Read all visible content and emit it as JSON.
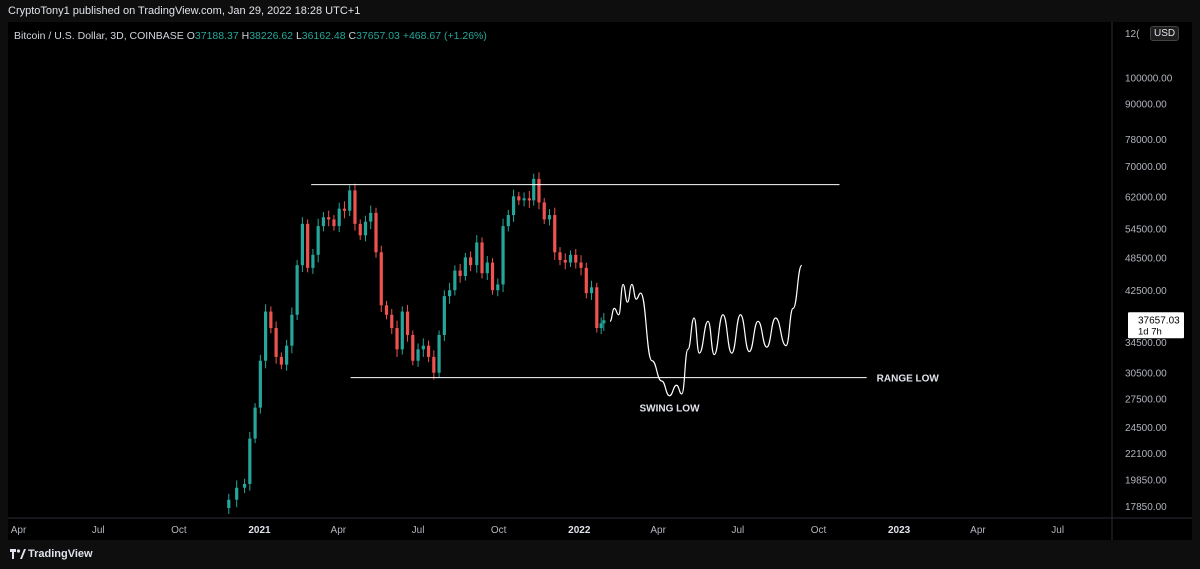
{
  "header": {
    "published": "CryptoTony1 published on TradingView.com, Jan 29, 2022 18:28 UTC+1"
  },
  "legend": {
    "symbol": "Bitcoin / U.S. Dollar, 3D, COINBASE",
    "o_label": "O",
    "o_value": "37188.37",
    "h_label": "H",
    "h_value": "38226.62",
    "l_label": "L",
    "l_value": "36162.48",
    "c_label": "C",
    "c_value": "37657.03",
    "change": "+468.67 (+1.26%)"
  },
  "currency_button": "USD",
  "price_badge": {
    "price": "37657.03",
    "countdown": "1d 7h"
  },
  "footer": {
    "brand": "TradingView"
  },
  "colors": {
    "up": "#26a69a",
    "down": "#ef5350",
    "background": "#000000",
    "drawing": "#ffffff"
  },
  "chart_data": {
    "type": "candlestick",
    "symbol": "Bitcoin / U.S. Dollar",
    "interval": "3D",
    "y_scale": "log",
    "ylim": [
      17000,
      125000
    ],
    "y_ticks": [
      100000,
      90000,
      78000,
      70000,
      62000,
      54500,
      48500,
      42500,
      34500,
      30500,
      27500,
      24500,
      22100,
      19850,
      17850
    ],
    "y_tick_labels": [
      "100000.00",
      "90000.00",
      "78000.00",
      "70000.00",
      "62000.00",
      "54500.00",
      "48500.00",
      "42500.00",
      "34500.00",
      "30500.00",
      "27500.00",
      "24500.00",
      "22100.00",
      "19850.00",
      "17850.00"
    ],
    "y_top_partial_label": "12(",
    "xlim": [
      "2020-03-20",
      "2023-09-01"
    ],
    "x_ticks": [
      {
        "date": "2020-04-01",
        "label": "Apr",
        "bold": false
      },
      {
        "date": "2020-07-01",
        "label": "Jul",
        "bold": false
      },
      {
        "date": "2020-10-01",
        "label": "Oct",
        "bold": false
      },
      {
        "date": "2021-01-01",
        "label": "2021",
        "bold": true
      },
      {
        "date": "2021-04-01",
        "label": "Apr",
        "bold": false
      },
      {
        "date": "2021-07-01",
        "label": "Jul",
        "bold": false
      },
      {
        "date": "2021-10-01",
        "label": "Oct",
        "bold": false
      },
      {
        "date": "2022-01-01",
        "label": "2022",
        "bold": true
      },
      {
        "date": "2022-04-01",
        "label": "Apr",
        "bold": false
      },
      {
        "date": "2022-07-01",
        "label": "Jul",
        "bold": false
      },
      {
        "date": "2022-10-01",
        "label": "Oct",
        "bold": false
      },
      {
        "date": "2023-01-01",
        "label": "2023",
        "bold": true
      },
      {
        "date": "2023-04-01",
        "label": "Apr",
        "bold": false
      },
      {
        "date": "2023-07-01",
        "label": "Jul",
        "bold": false
      }
    ],
    "price_path": [
      [
        "2020-11-18",
        17700
      ],
      [
        "2020-11-27",
        18300
      ],
      [
        "2020-12-06",
        19200
      ],
      [
        "2020-12-15",
        19500
      ],
      [
        "2020-12-21",
        23400
      ],
      [
        "2020-12-27",
        26500
      ],
      [
        "2021-01-02",
        32000
      ],
      [
        "2021-01-08",
        39000
      ],
      [
        "2021-01-14",
        36500
      ],
      [
        "2021-01-20",
        32500
      ],
      [
        "2021-01-26",
        31500
      ],
      [
        "2021-02-01",
        34000
      ],
      [
        "2021-02-07",
        38500
      ],
      [
        "2021-02-13",
        47000
      ],
      [
        "2021-02-19",
        55500
      ],
      [
        "2021-02-25",
        46500
      ],
      [
        "2021-03-03",
        49000
      ],
      [
        "2021-03-09",
        55000
      ],
      [
        "2021-03-15",
        57000
      ],
      [
        "2021-03-21",
        56500
      ],
      [
        "2021-03-27",
        55000
      ],
      [
        "2021-04-02",
        59000
      ],
      [
        "2021-04-08",
        58500
      ],
      [
        "2021-04-14",
        63500
      ],
      [
        "2021-04-20",
        55500
      ],
      [
        "2021-04-26",
        53000
      ],
      [
        "2021-05-02",
        56000
      ],
      [
        "2021-05-08",
        58000
      ],
      [
        "2021-05-14",
        49500
      ],
      [
        "2021-05-20",
        40000
      ],
      [
        "2021-05-26",
        38500
      ],
      [
        "2021-06-01",
        36500
      ],
      [
        "2021-06-07",
        33500
      ],
      [
        "2021-06-13",
        39000
      ],
      [
        "2021-06-19",
        35500
      ],
      [
        "2021-06-25",
        32000
      ],
      [
        "2021-07-01",
        33500
      ],
      [
        "2021-07-07",
        34000
      ],
      [
        "2021-07-13",
        32500
      ],
      [
        "2021-07-19",
        30500
      ],
      [
        "2021-07-25",
        35500
      ],
      [
        "2021-07-31",
        41500
      ],
      [
        "2021-08-06",
        42500
      ],
      [
        "2021-08-12",
        46000
      ],
      [
        "2021-08-18",
        45000
      ],
      [
        "2021-08-24",
        48500
      ],
      [
        "2021-08-30",
        47000
      ],
      [
        "2021-09-06",
        51500
      ],
      [
        "2021-09-12",
        45500
      ],
      [
        "2021-09-18",
        47500
      ],
      [
        "2021-09-24",
        42500
      ],
      [
        "2021-09-30",
        43500
      ],
      [
        "2021-10-06",
        55000
      ],
      [
        "2021-10-12",
        57500
      ],
      [
        "2021-10-18",
        62000
      ],
      [
        "2021-10-24",
        61000
      ],
      [
        "2021-10-30",
        61500
      ],
      [
        "2021-11-05",
        61000
      ],
      [
        "2021-11-10",
        66500
      ],
      [
        "2021-11-16",
        60500
      ],
      [
        "2021-11-22",
        56500
      ],
      [
        "2021-11-28",
        57500
      ],
      [
        "2021-12-04",
        49500
      ],
      [
        "2021-12-10",
        48000
      ],
      [
        "2021-12-16",
        47500
      ],
      [
        "2021-12-22",
        49000
      ],
      [
        "2021-12-28",
        47500
      ],
      [
        "2022-01-03",
        46500
      ],
      [
        "2022-01-09",
        42000
      ],
      [
        "2022-01-15",
        43000
      ],
      [
        "2022-01-21",
        36500
      ],
      [
        "2022-01-26",
        37200
      ],
      [
        "2022-01-29",
        37657
      ]
    ],
    "drawings": [
      {
        "type": "horizontal-line",
        "label": "",
        "price": 65000,
        "from": "2021-03-01",
        "to": "2022-10-25"
      },
      {
        "type": "horizontal-line",
        "label": "RANGE LOW",
        "price": 29900,
        "from": "2021-04-15",
        "to": "2022-11-25"
      },
      {
        "type": "freehand-projection",
        "label": "SWING LOW",
        "path": [
          [
            "2022-02-05",
            37500
          ],
          [
            "2022-02-10",
            39500
          ],
          [
            "2022-02-15",
            38500
          ],
          [
            "2022-02-20",
            43500
          ],
          [
            "2022-02-25",
            40500
          ],
          [
            "2022-03-02",
            43500
          ],
          [
            "2022-03-07",
            41000
          ],
          [
            "2022-03-12",
            42000
          ],
          [
            "2022-03-25",
            32000
          ],
          [
            "2022-04-05",
            29500
          ],
          [
            "2022-04-14",
            27800
          ],
          [
            "2022-04-22",
            29000
          ],
          [
            "2022-04-28",
            28000
          ],
          [
            "2022-05-05",
            33500
          ],
          [
            "2022-05-12",
            38000
          ],
          [
            "2022-05-18",
            33000
          ],
          [
            "2022-05-28",
            37500
          ],
          [
            "2022-06-04",
            32800
          ],
          [
            "2022-06-14",
            38500
          ],
          [
            "2022-06-24",
            33000
          ],
          [
            "2022-07-04",
            38500
          ],
          [
            "2022-07-14",
            33200
          ],
          [
            "2022-07-24",
            37500
          ],
          [
            "2022-08-03",
            33800
          ],
          [
            "2022-08-13",
            38000
          ],
          [
            "2022-08-25",
            34000
          ],
          [
            "2022-09-02",
            39500
          ],
          [
            "2022-09-12",
            47000
          ]
        ]
      }
    ]
  }
}
